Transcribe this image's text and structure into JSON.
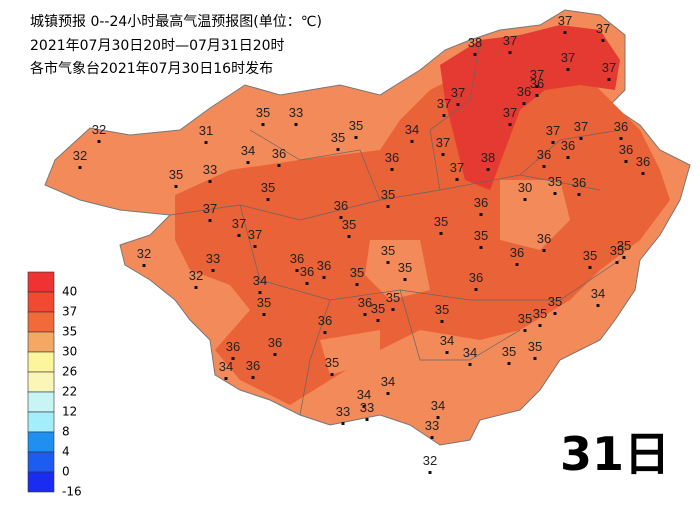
{
  "header": {
    "title": "城镇预报 0--24小时最高气温预报图(单位：℃)",
    "period": "2021年07月30日20时—07月31日20时",
    "issued": "各市气象台2021年07月30日16时发布"
  },
  "day_label": "31日",
  "legend": [
    {
      "label": 40,
      "color": "#ef3232"
    },
    {
      "label": 37,
      "color": "#f24a30"
    },
    {
      "label": 35,
      "color": "#f06a3a"
    },
    {
      "label": 30,
      "color": "#f5a764"
    },
    {
      "label": 26,
      "color": "#fdf59c"
    },
    {
      "label": 22,
      "color": "#fbf6b8"
    },
    {
      "label": 12,
      "color": "#c8f4f4"
    },
    {
      "label": 8,
      "color": "#a3eefa"
    },
    {
      "label": 4,
      "color": "#1f8ff2"
    },
    {
      "label": 0,
      "color": "#1d5cf0"
    },
    {
      "label": -16,
      "color": "#1a2cf2"
    }
  ],
  "stations": [
    37,
    37,
    38,
    37,
    37,
    37,
    37,
    36,
    36,
    37,
    37,
    37,
    37,
    37,
    36,
    36,
    36,
    36,
    36,
    38,
    37,
    37,
    34,
    36,
    35,
    35,
    35,
    33,
    31,
    32,
    32,
    34,
    36,
    35,
    33,
    35,
    35,
    36,
    35,
    37,
    37,
    37,
    36,
    35,
    35,
    30,
    35,
    36,
    36,
    36,
    35,
    35,
    35,
    35,
    35,
    35,
    36,
    36,
    36,
    33,
    32,
    32,
    34,
    35,
    36,
    35,
    35,
    35,
    36,
    35,
    35,
    35,
    34,
    36,
    36,
    36,
    34,
    36,
    35,
    34,
    34,
    35,
    35,
    34,
    34,
    33,
    33,
    34,
    33,
    32
  ]
}
